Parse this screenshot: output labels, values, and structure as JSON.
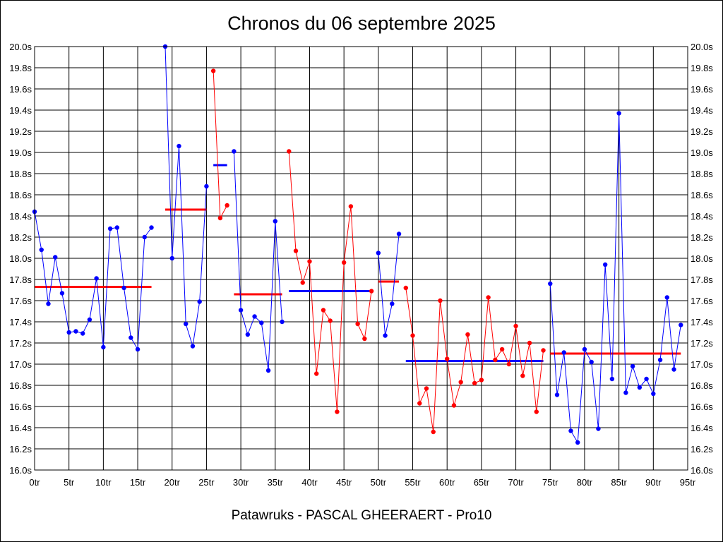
{
  "title": "Chronos du 06 septembre 2025",
  "footer": "Patawruks - PASCAL GHEERAERT - Pro10",
  "colors": {
    "blue": "#0000ff",
    "red": "#ff0000",
    "grid": "#000000"
  },
  "chart_data": {
    "type": "line",
    "title": "Chronos du 06 septembre 2025",
    "xlabel": "",
    "ylabel": "",
    "xlim": [
      0,
      95
    ],
    "ylim": [
      16.0,
      20.0
    ],
    "grid": true,
    "x_ticks": [
      0,
      5,
      10,
      15,
      20,
      25,
      30,
      35,
      40,
      45,
      50,
      55,
      60,
      65,
      70,
      75,
      80,
      85,
      90,
      95
    ],
    "x_tick_labels": [
      "0tr",
      "5tr",
      "10tr",
      "15tr",
      "20tr",
      "25tr",
      "30tr",
      "35tr",
      "40tr",
      "45tr",
      "50tr",
      "55tr",
      "60tr",
      "65tr",
      "70tr",
      "75tr",
      "80tr",
      "85tr",
      "90tr",
      "95tr"
    ],
    "y_ticks": [
      16.0,
      16.2,
      16.4,
      16.6,
      16.8,
      17.0,
      17.2,
      17.4,
      17.6,
      17.8,
      18.0,
      18.2,
      18.4,
      18.6,
      18.8,
      19.0,
      19.2,
      19.4,
      19.6,
      19.8,
      20.0
    ],
    "y_tick_labels": [
      "16.0s",
      "16.2s",
      "16.4s",
      "16.6s",
      "16.8s",
      "17.0s",
      "17.2s",
      "17.4s",
      "17.6s",
      "17.8s",
      "18.0s",
      "18.2s",
      "18.4s",
      "18.6s",
      "18.8s",
      "19.0s",
      "19.2s",
      "19.4s",
      "19.6s",
      "19.8s",
      "20.0s"
    ],
    "series": [
      {
        "color": "blue",
        "x": [
          0,
          1,
          2,
          3,
          4,
          5,
          6,
          7,
          8,
          9,
          10,
          11,
          12,
          13,
          14,
          15,
          16,
          17
        ],
        "y": [
          18.44,
          18.08,
          17.57,
          18.01,
          17.67,
          17.3,
          17.31,
          17.29,
          17.42,
          17.81,
          17.16,
          18.28,
          18.29,
          17.72,
          17.25,
          17.14,
          18.2,
          18.29
        ]
      },
      {
        "color": "blue",
        "x": [
          19,
          20,
          21,
          22,
          23,
          24,
          25
        ],
        "y": [
          20.0,
          18.0,
          19.06,
          17.38,
          17.17,
          17.59,
          18.68
        ]
      },
      {
        "color": "red",
        "x": [
          26,
          27,
          28
        ],
        "y": [
          19.77,
          18.38,
          18.5
        ]
      },
      {
        "color": "blue",
        "x": [
          29,
          30,
          31,
          32,
          33,
          34,
          35,
          36
        ],
        "y": [
          19.01,
          17.51,
          17.28,
          17.45,
          17.39,
          16.94,
          18.35,
          17.4
        ]
      },
      {
        "color": "red",
        "x": [
          37,
          38,
          39,
          40,
          41,
          42,
          43,
          44,
          45,
          46,
          47,
          48,
          49
        ],
        "y": [
          19.01,
          18.07,
          17.77,
          17.97,
          16.91,
          17.51,
          17.41,
          16.55,
          17.96,
          18.49,
          17.38,
          17.24,
          17.69
        ]
      },
      {
        "color": "blue",
        "x": [
          50,
          51,
          52,
          53
        ],
        "y": [
          18.05,
          17.27,
          17.57,
          18.23
        ]
      },
      {
        "color": "red",
        "x": [
          54,
          55,
          56,
          57,
          58,
          59,
          60,
          61,
          62,
          63,
          64,
          65,
          66,
          67,
          68,
          69,
          70,
          71,
          72,
          73,
          74
        ],
        "y": [
          17.72,
          17.27,
          16.63,
          16.77,
          16.36,
          17.6,
          17.05,
          16.61,
          16.83,
          17.28,
          16.82,
          16.85,
          17.63,
          17.04,
          17.14,
          17.0,
          17.36,
          16.89,
          17.2,
          16.55,
          17.13
        ]
      },
      {
        "color": "blue",
        "x": [
          75,
          76,
          77,
          78,
          79,
          80,
          81,
          82,
          83,
          84,
          85,
          86,
          87,
          88,
          89,
          90,
          91,
          92,
          93,
          94
        ],
        "y": [
          17.76,
          16.71,
          17.11,
          16.37,
          16.26,
          17.14,
          17.02,
          16.39,
          17.94,
          16.86,
          19.37,
          16.73,
          16.98,
          16.78,
          16.86,
          16.72,
          17.04,
          17.63,
          16.95,
          17.37
        ]
      }
    ],
    "averages": [
      {
        "color": "red",
        "x": [
          0,
          17
        ],
        "y": 17.73
      },
      {
        "color": "red",
        "x": [
          19,
          25
        ],
        "y": 18.46
      },
      {
        "color": "blue",
        "x": [
          26,
          28
        ],
        "y": 18.88
      },
      {
        "color": "red",
        "x": [
          29,
          36
        ],
        "y": 17.66
      },
      {
        "color": "blue",
        "x": [
          37,
          49
        ],
        "y": 17.69
      },
      {
        "color": "red",
        "x": [
          50,
          53
        ],
        "y": 17.78
      },
      {
        "color": "blue",
        "x": [
          54,
          74
        ],
        "y": 17.03
      },
      {
        "color": "red",
        "x": [
          75,
          94
        ],
        "y": 17.1
      }
    ]
  }
}
